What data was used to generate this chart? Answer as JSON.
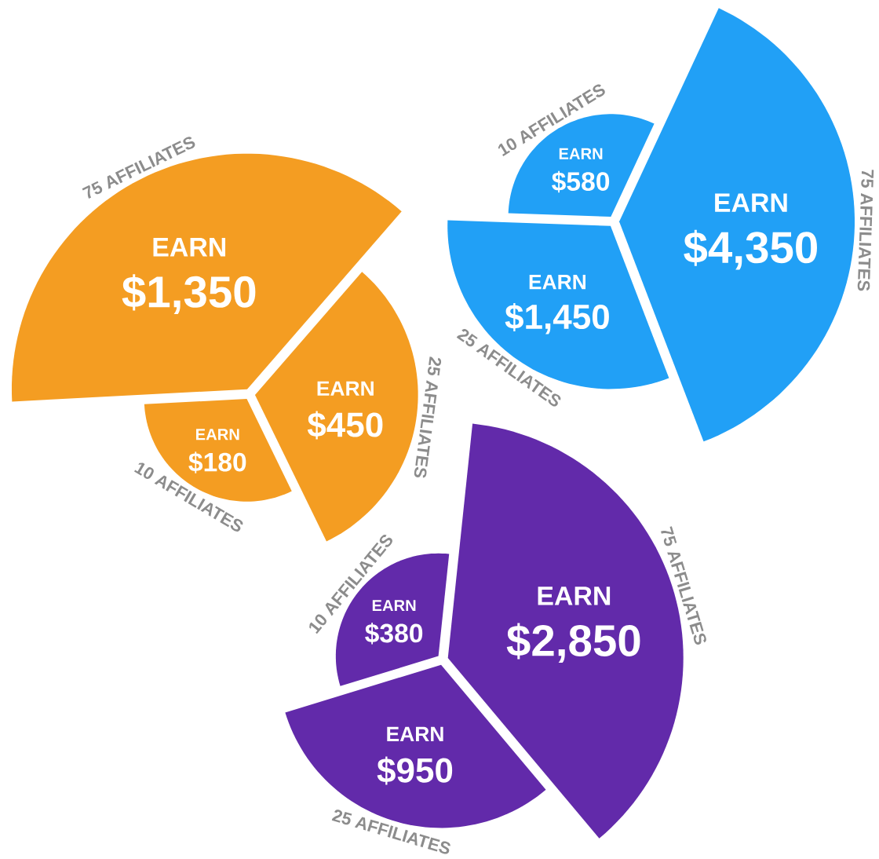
{
  "chart_data": [
    {
      "type": "other",
      "categories": [
        "10 AFFILIATES",
        "25 AFFILIATES",
        "75 AFFILIATES"
      ],
      "values": [
        180,
        450,
        1350
      ],
      "value_labels": [
        "$180",
        "$450",
        "$1,350"
      ],
      "color": "#f49d22",
      "annotations": [
        "EARN",
        "EARN",
        "EARN"
      ]
    },
    {
      "type": "other",
      "categories": [
        "10 AFFILIATES",
        "25 AFFILIATES",
        "75 AFFILIATES"
      ],
      "values": [
        580,
        1450,
        4350
      ],
      "value_labels": [
        "$580",
        "$1,450",
        "$4,350"
      ],
      "color": "#21a0f6",
      "annotations": [
        "EARN",
        "EARN",
        "EARN"
      ]
    },
    {
      "type": "other",
      "categories": [
        "10 AFFILIATES",
        "25 AFFILIATES",
        "75 AFFILIATES"
      ],
      "values": [
        380,
        950,
        2850
      ],
      "value_labels": [
        "$380",
        "$950",
        "$2,850"
      ],
      "color": "#622aaa",
      "annotations": [
        "EARN",
        "EARN",
        "EARN"
      ]
    }
  ]
}
